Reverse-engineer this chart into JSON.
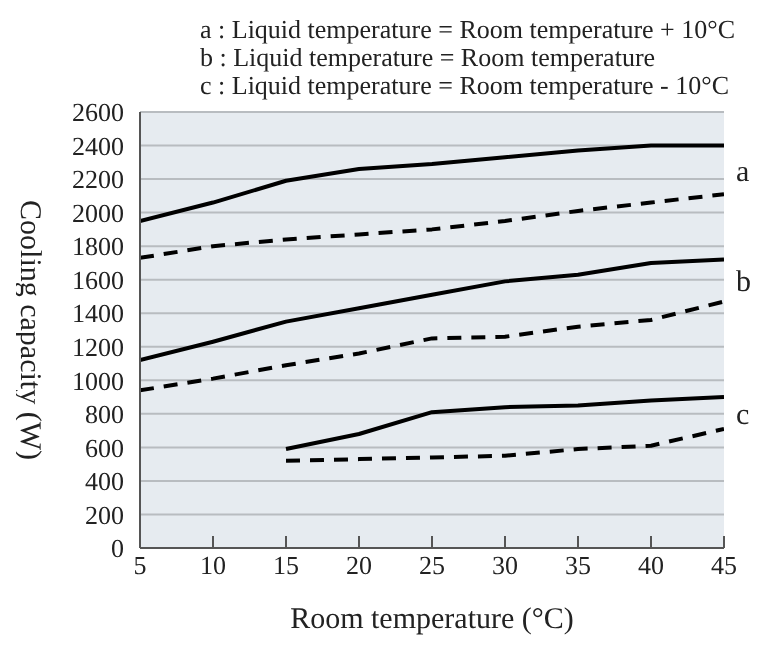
{
  "chart_data": {
    "type": "line",
    "xlabel": "Room temperature (°C)",
    "ylabel": "Cooling capacity (W)",
    "annotations": [
      "a : Liquid temperature = Room temperature + 10°C",
      "b : Liquid temperature = Room temperature",
      "c : Liquid temperature = Room temperature - 10°C",
      "a",
      "b",
      "c"
    ],
    "x": [
      5,
      10,
      15,
      20,
      25,
      30,
      35,
      40,
      45
    ],
    "series": [
      {
        "color": "#000000",
        "line_style": "solid",
        "values": [
          1950,
          2060,
          2190,
          2260,
          2290,
          2330,
          2370,
          2400,
          2400
        ]
      },
      {
        "color": "#000000",
        "line_style": "dashed",
        "values": [
          1730,
          1800,
          1840,
          1870,
          1900,
          1950,
          2010,
          2060,
          2110
        ]
      },
      {
        "color": "#000000",
        "line_style": "solid",
        "values": [
          1120,
          1230,
          1350,
          1430,
          1510,
          1590,
          1630,
          1700,
          1720
        ]
      },
      {
        "color": "#000000",
        "line_style": "dashed",
        "values": [
          940,
          1010,
          1090,
          1160,
          1250,
          1260,
          1320,
          1360,
          1470
        ]
      },
      {
        "color": "#000000",
        "line_style": "solid",
        "values": [
          null,
          null,
          590,
          680,
          810,
          840,
          850,
          880,
          900
        ]
      },
      {
        "color": "#000000",
        "line_style": "dashed",
        "values": [
          null,
          null,
          520,
          530,
          540,
          550,
          590,
          610,
          710
        ]
      }
    ],
    "xlim": [
      5,
      45
    ],
    "xticks": [
      5,
      10,
      15,
      20,
      25,
      30,
      35,
      40,
      45
    ],
    "ylim": [
      0,
      2600
    ],
    "yticks": [
      0,
      200,
      400,
      600,
      800,
      1000,
      1200,
      1400,
      1600,
      1800,
      2000,
      2200,
      2400,
      2600
    ],
    "grid": "y",
    "legend": false,
    "marker": "none"
  }
}
